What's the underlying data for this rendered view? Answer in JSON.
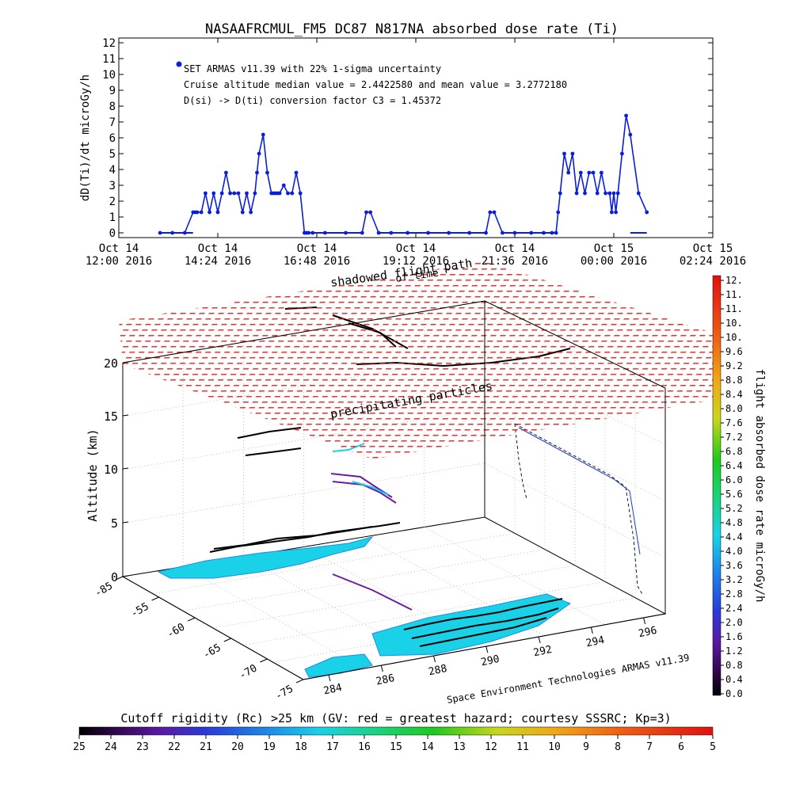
{
  "chart_data": [
    {
      "type": "scatter",
      "title": "NASAAFRCMUL_FM5 DC87 N817NA absorbed dose rate (Ti)",
      "ylabel": "dD(Ti)/dt microGy/h",
      "ylim": [
        0,
        12
      ],
      "yticks": [
        "0",
        "1",
        "2",
        "3",
        "4",
        "5",
        "6",
        "7",
        "8",
        "9",
        "10",
        "11",
        "12"
      ],
      "xticks": [
        {
          "line1": "Oct 14",
          "line2": "12:00 2016"
        },
        {
          "line1": "Oct 14",
          "line2": "14:24 2016"
        },
        {
          "line1": "Oct 14",
          "line2": "16:48 2016"
        },
        {
          "line1": "Oct 14",
          "line2": "19:12 2016"
        },
        {
          "line1": "Oct 14",
          "line2": "21:36 2016"
        },
        {
          "line1": "Oct 15",
          "line2": "00:00 2016"
        },
        {
          "line1": "Oct 15",
          "line2": "02:24 2016"
        }
      ],
      "xlim_hours": [
        12.0,
        26.4
      ],
      "legend": [
        "SET ARMAS v11.39 with 22% 1-sigma uncertainty",
        "Cruise altitude median value = 2.4422580 and mean value = 3.2772180",
        "D(si) -> D(ti) conversion factor C3 = 1.45372"
      ],
      "series_color": "#0b1fd6",
      "x_hours": [
        13.0,
        13.3,
        13.6,
        13.8,
        13.85,
        13.9,
        14.0,
        14.1,
        14.2,
        14.3,
        14.4,
        14.5,
        14.6,
        14.7,
        14.8,
        14.9,
        15.0,
        15.1,
        15.2,
        15.3,
        15.35,
        15.4,
        15.5,
        15.6,
        15.7,
        15.75,
        15.8,
        15.85,
        15.9,
        16.0,
        16.1,
        16.2,
        16.3,
        16.4,
        16.5,
        16.55,
        16.6,
        16.7,
        17.0,
        17.5,
        17.9,
        18.0,
        18.1,
        18.3,
        18.6,
        19.0,
        19.5,
        20.0,
        20.5,
        20.9,
        21.0,
        21.1,
        21.3,
        21.6,
        22.0,
        22.3,
        22.5,
        22.6,
        22.65,
        22.7,
        22.8,
        22.9,
        23.0,
        23.1,
        23.2,
        23.3,
        23.4,
        23.5,
        23.6,
        23.7,
        23.8,
        23.9,
        23.95,
        24.0,
        24.05,
        24.1,
        24.2,
        24.3,
        24.4,
        24.6,
        24.8
      ],
      "values": [
        0,
        0,
        0,
        1.3,
        1.3,
        1.3,
        1.3,
        2.5,
        1.3,
        2.5,
        1.3,
        2.5,
        3.8,
        2.5,
        2.5,
        2.5,
        1.3,
        2.5,
        1.3,
        2.5,
        3.8,
        5.0,
        6.2,
        3.8,
        2.5,
        2.5,
        2.5,
        2.5,
        2.5,
        3.0,
        2.5,
        2.5,
        3.8,
        2.5,
        0,
        0,
        0,
        0,
        0,
        0,
        0,
        1.3,
        1.3,
        0,
        0,
        0,
        0,
        0,
        0,
        0,
        1.3,
        1.3,
        0,
        0,
        0,
        0,
        0,
        0,
        1.3,
        2.5,
        5.0,
        3.8,
        5.0,
        2.5,
        3.8,
        2.5,
        3.8,
        3.8,
        2.5,
        3.8,
        2.5,
        2.5,
        1.3,
        2.5,
        1.3,
        2.5,
        5.0,
        7.4,
        6.2,
        2.5,
        1.3
      ]
    },
    {
      "type": "3d-surface",
      "zlabel": "Altitude (km)",
      "zticks": [
        "0",
        "5",
        "10",
        "15",
        "20"
      ],
      "lat_ticks": [
        "-85",
        "-55",
        "-60",
        "-65",
        "-70",
        "-75"
      ],
      "lon_ticks": [
        "284",
        "286",
        "288",
        "290",
        "292",
        "294",
        "296"
      ],
      "annotations": [
        "shadowed flight path",
        "of time",
        "precipitating particles"
      ],
      "credit": "Space Environment Technologies ARMAS v11.39"
    },
    {
      "type": "colorbar",
      "label": "flight absorbed dose rate microGy/h",
      "ticks": [
        "12.",
        "11.",
        "11.",
        "10.",
        "10.",
        "9.6",
        "9.2",
        "8.8",
        "8.4",
        "8.0",
        "7.6",
        "7.2",
        "6.8",
        "6.4",
        "6.0",
        "5.6",
        "5.2",
        "4.8",
        "4.4",
        "4.0",
        "3.6",
        "3.2",
        "2.8",
        "2.4",
        "2.0",
        "1.6",
        "1.2",
        "0.8",
        "0.4",
        "0.0"
      ]
    },
    {
      "type": "colorbar",
      "label": "Cutoff rigidity (Rc) >25 km (GV: red = greatest hazard; courtesy SSSRC; Kp=3)",
      "ticks": [
        "25",
        "24",
        "23",
        "22",
        "21",
        "20",
        "19",
        "18",
        "17",
        "16",
        "15",
        "14",
        "13",
        "12",
        "11",
        "10",
        "9",
        "8",
        "7",
        "6",
        "5"
      ]
    }
  ],
  "colors": {
    "dose_series": "#0b1fd6",
    "red_layer": "#d41c1c",
    "cyan_ground": "#19d2e8",
    "purple_track": "#6a1ea8"
  }
}
